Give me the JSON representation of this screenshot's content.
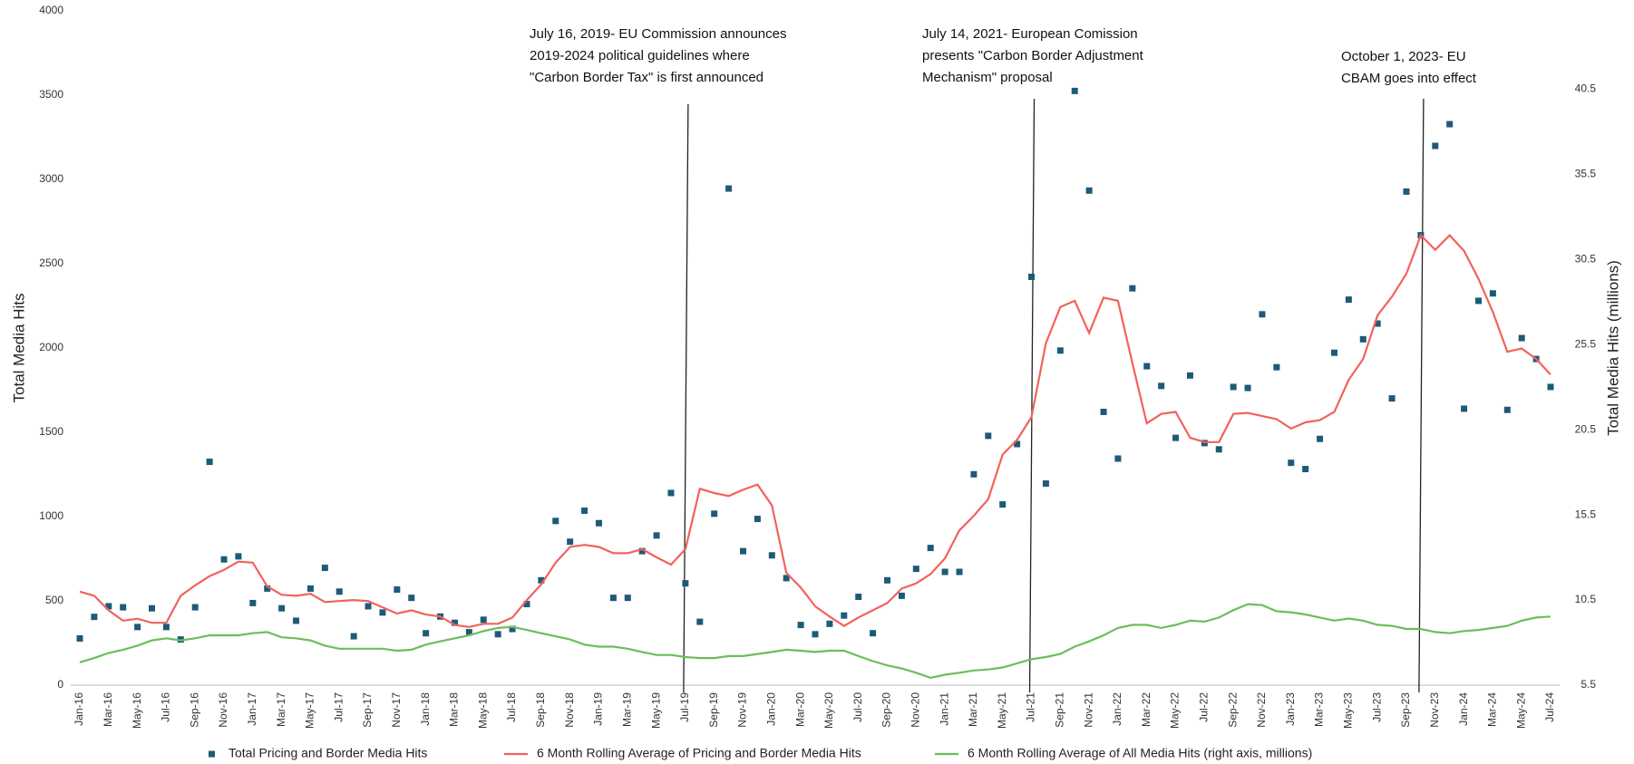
{
  "chart_data": {
    "type": "combo",
    "y_label": "Total Media Hits",
    "y2_label": "Total Media Hits (millions)",
    "annotations": [
      [
        "July 16, 2019- EU Commission announces",
        "2019-2024 political guidelines where",
        "\"Carbon Border Tax\" is first announced"
      ],
      [
        "July 14, 2021- European Comission",
        "presents \"Carbon Border Adjustment",
        "Mechanism\" proposal"
      ],
      [
        "October 1, 2023-  EU",
        "CBAM goes into effect"
      ]
    ],
    "categories": [
      "Jan-16",
      null,
      "Mar-16",
      null,
      "May-16",
      null,
      "Jul-16",
      null,
      "Sep-16",
      null,
      "Nov-16",
      null,
      "Jan-17",
      null,
      "Mar-17",
      null,
      "May-17",
      null,
      "Jul-17",
      null,
      "Sep-17",
      null,
      "Nov-17",
      null,
      "Jan-18",
      null,
      "Mar-18",
      null,
      "May-18",
      null,
      "Jul-18",
      null,
      "Sep-18",
      null,
      "Nov-18",
      null,
      "Jan-19",
      null,
      "Mar-19",
      null,
      "May-19",
      null,
      "Jul-19",
      null,
      "Sep-19",
      null,
      "Nov-19",
      null,
      "Jan-20",
      null,
      "Mar-20",
      null,
      "May-20",
      null,
      "Jul-20",
      null,
      "Sep-20",
      null,
      "Nov-20",
      null,
      "Jan-21",
      null,
      "Mar-21",
      null,
      "May-21",
      null,
      "Jul-21",
      null,
      "Sep-21",
      null,
      "Nov-21",
      null,
      "Jan-22",
      null,
      "Mar-22",
      null,
      "May-22",
      null,
      "Jul-22",
      null,
      "Sep-22",
      null,
      "Nov-22",
      null,
      "Jan-23",
      null,
      "Mar-23",
      null,
      "May-23",
      null,
      "Jul-23",
      null,
      "Sep-23",
      null,
      "Nov-23",
      null,
      "Jan-24",
      null,
      "Mar-24",
      null,
      "May-24",
      null,
      "Jul-24"
    ],
    "series": [
      {
        "name": "Total Pricing and Border Media Hits",
        "type": "scatter",
        "color": "#1d5a78",
        "values": [
          277,
          405,
          468,
          462,
          345,
          456,
          345,
          271,
          462,
          1325,
          746,
          764,
          487,
          573,
          456,
          382,
          573,
          696,
          555,
          290,
          468,
          431,
          567,
          518,
          308,
          407,
          370,
          314,
          388,
          302,
          333,
          481,
          622,
          974,
          851,
          1035,
          961,
          518,
          518,
          795,
          888,
          1140,
          604,
          376,
          1017,
          2946,
          795,
          986,
          770,
          635,
          357,
          302,
          364,
          413,
          524,
          308,
          622,
          530,
          690,
          814,
          672,
          672,
          1251,
          1479,
          1072,
          1430,
          2422,
          1196,
          1985,
          3525,
          2934,
          1621,
          1344,
          2354,
          1892,
          1775,
          1467,
          1837,
          1436,
          1399,
          1769,
          1763,
          2200,
          1886,
          1319,
          1282,
          1461,
          1972,
          2287,
          2052,
          2145,
          1701,
          2928,
          2669,
          3199,
          3328,
          1640,
          2280,
          2324,
          1633,
          2059,
          1935,
          1769
        ]
      },
      {
        "name": "6 Month Rolling Average of Pricing and Border Media Hits",
        "type": "line",
        "color": "#f2625c",
        "values": [
          555,
          530,
          444,
          382,
          394,
          370,
          370,
          530,
          592,
          647,
          684,
          733,
          727,
          586,
          536,
          530,
          542,
          493,
          499,
          505,
          499,
          462,
          425,
          444,
          419,
          407,
          357,
          345,
          364,
          364,
          401,
          505,
          598,
          727,
          820,
          832,
          820,
          783,
          783,
          807,
          758,
          715,
          807,
          1165,
          1140,
          1122,
          1159,
          1190,
          1066,
          666,
          579,
          468,
          407,
          351,
          401,
          444,
          487,
          573,
          604,
          659,
          752,
          918,
          1005,
          1103,
          1368,
          1455,
          1590,
          2028,
          2243,
          2280,
          2089,
          2299,
          2280,
          1911,
          1553,
          1609,
          1621,
          1467,
          1442,
          1442,
          1609,
          1615,
          1596,
          1578,
          1522,
          1559,
          1572,
          1621,
          1812,
          1935,
          2194,
          2305,
          2441,
          2669,
          2582,
          2669,
          2576,
          2410,
          2213,
          1978,
          1997,
          1935,
          1843
        ]
      },
      {
        "name": "6 Month Rolling Average of All Media Hits (right axis, millions)",
        "type": "line",
        "axis": "y2",
        "color": "#6cbd5c",
        "values": [
          6.84,
          7.09,
          7.39,
          7.58,
          7.82,
          8.13,
          8.25,
          8.13,
          8.25,
          8.43,
          8.43,
          8.43,
          8.55,
          8.62,
          8.31,
          8.25,
          8.13,
          7.82,
          7.64,
          7.64,
          7.64,
          7.64,
          7.52,
          7.58,
          7.88,
          8.07,
          8.25,
          8.43,
          8.68,
          8.86,
          8.92,
          8.74,
          8.55,
          8.37,
          8.19,
          7.88,
          7.76,
          7.76,
          7.64,
          7.45,
          7.27,
          7.27,
          7.15,
          7.09,
          7.09,
          7.21,
          7.21,
          7.33,
          7.45,
          7.58,
          7.52,
          7.45,
          7.52,
          7.52,
          7.21,
          6.91,
          6.66,
          6.48,
          6.23,
          5.93,
          6.11,
          6.23,
          6.36,
          6.42,
          6.54,
          6.78,
          7.03,
          7.15,
          7.33,
          7.76,
          8.07,
          8.43,
          8.86,
          9.04,
          9.04,
          8.86,
          9.04,
          9.29,
          9.23,
          9.47,
          9.9,
          10.26,
          10.2,
          9.84,
          9.78,
          9.65,
          9.47,
          9.29,
          9.41,
          9.29,
          9.04,
          8.98,
          8.8,
          8.8,
          8.62,
          8.55,
          8.68,
          8.74,
          8.86,
          8.98,
          9.29,
          9.47,
          9.53
        ]
      }
    ],
    "ylim": [
      0,
      4000
    ],
    "yticks": [
      0,
      500,
      1000,
      1500,
      2000,
      2500,
      3000,
      3500,
      4000
    ],
    "y2lim": [
      5.5,
      45.1
    ],
    "y2ticks": [
      5.5,
      10.5,
      15.5,
      20.5,
      25.5,
      30.5,
      35.5,
      40.5
    ],
    "grid": false
  }
}
